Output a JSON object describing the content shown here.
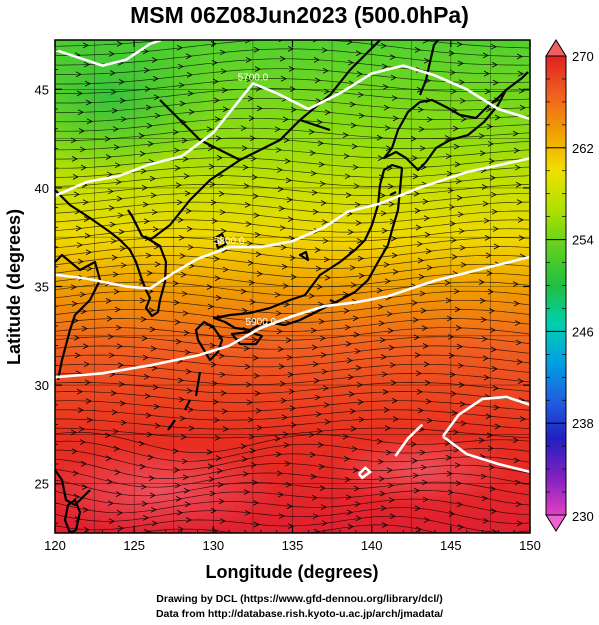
{
  "title": "MSM 06Z08Jun2023 (500.0hPa)",
  "x_axis": {
    "label": "Longitude (degrees)",
    "range": [
      120,
      150
    ],
    "ticks": [
      120,
      125,
      130,
      135,
      140,
      145,
      150
    ]
  },
  "y_axis": {
    "label": "Latitude  (degrees)",
    "range": [
      22.5,
      47.5
    ],
    "ticks": [
      25,
      30,
      35,
      40,
      45
    ]
  },
  "colorbar": {
    "range": [
      230,
      270
    ],
    "ticks": [
      230,
      238,
      246,
      254,
      262,
      270
    ],
    "stops": [
      "#e040c0",
      "#8020c0",
      "#2020c0",
      "#2060e0",
      "#00a0e0",
      "#00d0b0",
      "#20c040",
      "#60d020",
      "#b0e000",
      "#f0e000",
      "#f0a000",
      "#f06020",
      "#e02020"
    ]
  },
  "contours": [
    {
      "label": "5900.0",
      "points": [
        [
          120,
          30.4
        ],
        [
          123,
          30.6
        ],
        [
          126,
          31.0
        ],
        [
          129,
          31.5
        ],
        [
          131,
          32.0
        ],
        [
          133,
          32.9
        ],
        [
          135,
          33.5
        ],
        [
          137,
          34.0
        ],
        [
          139,
          34.2
        ],
        [
          141,
          34.5
        ],
        [
          144,
          35.3
        ],
        [
          147,
          35.9
        ],
        [
          150,
          36.5
        ]
      ]
    },
    {
      "label": "5800.0",
      "points": [
        [
          120,
          35.6
        ],
        [
          122,
          35.4
        ],
        [
          124.5,
          35.0
        ],
        [
          126,
          34.9
        ],
        [
          127.5,
          35.7
        ],
        [
          129,
          36.4
        ],
        [
          131,
          37.0
        ],
        [
          133,
          37.0
        ],
        [
          135,
          37.3
        ],
        [
          137,
          38.0
        ],
        [
          138.5,
          38.8
        ],
        [
          140.5,
          39.2
        ],
        [
          143,
          40.0
        ],
        [
          146,
          40.8
        ],
        [
          150,
          41.5
        ]
      ]
    },
    {
      "label": "5700.0",
      "points": [
        [
          120,
          39.6
        ],
        [
          122,
          40.3
        ],
        [
          124,
          40.6
        ],
        [
          126,
          41.2
        ],
        [
          128,
          41.6
        ],
        [
          130,
          42.8
        ],
        [
          131.5,
          44.3
        ],
        [
          132.5,
          45.3
        ],
        [
          134,
          44.8
        ],
        [
          136,
          44.0
        ],
        [
          138,
          44.8
        ],
        [
          140,
          45.8
        ],
        [
          142,
          46.2
        ],
        [
          144,
          45.7
        ],
        [
          146,
          45.0
        ],
        [
          148,
          44.0
        ],
        [
          150,
          43.5
        ]
      ]
    },
    {
      "label": "",
      "points": [
        [
          120,
          47.0
        ],
        [
          121.5,
          46.6
        ],
        [
          123,
          46.2
        ],
        [
          124.5,
          46.5
        ],
        [
          126,
          47.3
        ],
        [
          126.7,
          47.5
        ]
      ]
    },
    {
      "label": "",
      "points": [
        [
          139.2,
          25.5
        ],
        [
          139.6,
          25.8
        ],
        [
          139.9,
          25.6
        ],
        [
          139.4,
          25.3
        ],
        [
          139.2,
          25.5
        ]
      ]
    },
    {
      "label": "",
      "points": [
        [
          141.5,
          26.4
        ],
        [
          142.3,
          27.3
        ],
        [
          143.2,
          28.0
        ]
      ]
    },
    {
      "label": "",
      "points": [
        [
          144.5,
          27.4
        ],
        [
          145.5,
          28.5
        ],
        [
          147.0,
          29.3
        ],
        [
          148.5,
          29.4
        ],
        [
          150,
          29.0
        ]
      ]
    },
    {
      "label": "",
      "points": [
        [
          144.5,
          27.4
        ],
        [
          146.0,
          26.5
        ],
        [
          148.0,
          26.0
        ],
        [
          150,
          25.6
        ]
      ]
    }
  ],
  "credits": [
    "Drawing by DCL (https://www.gfd-dennou.org/library/dcl/)",
    "Data from http://database.rish.kyoto-u.ac.jp/arch/jmadata/"
  ]
}
